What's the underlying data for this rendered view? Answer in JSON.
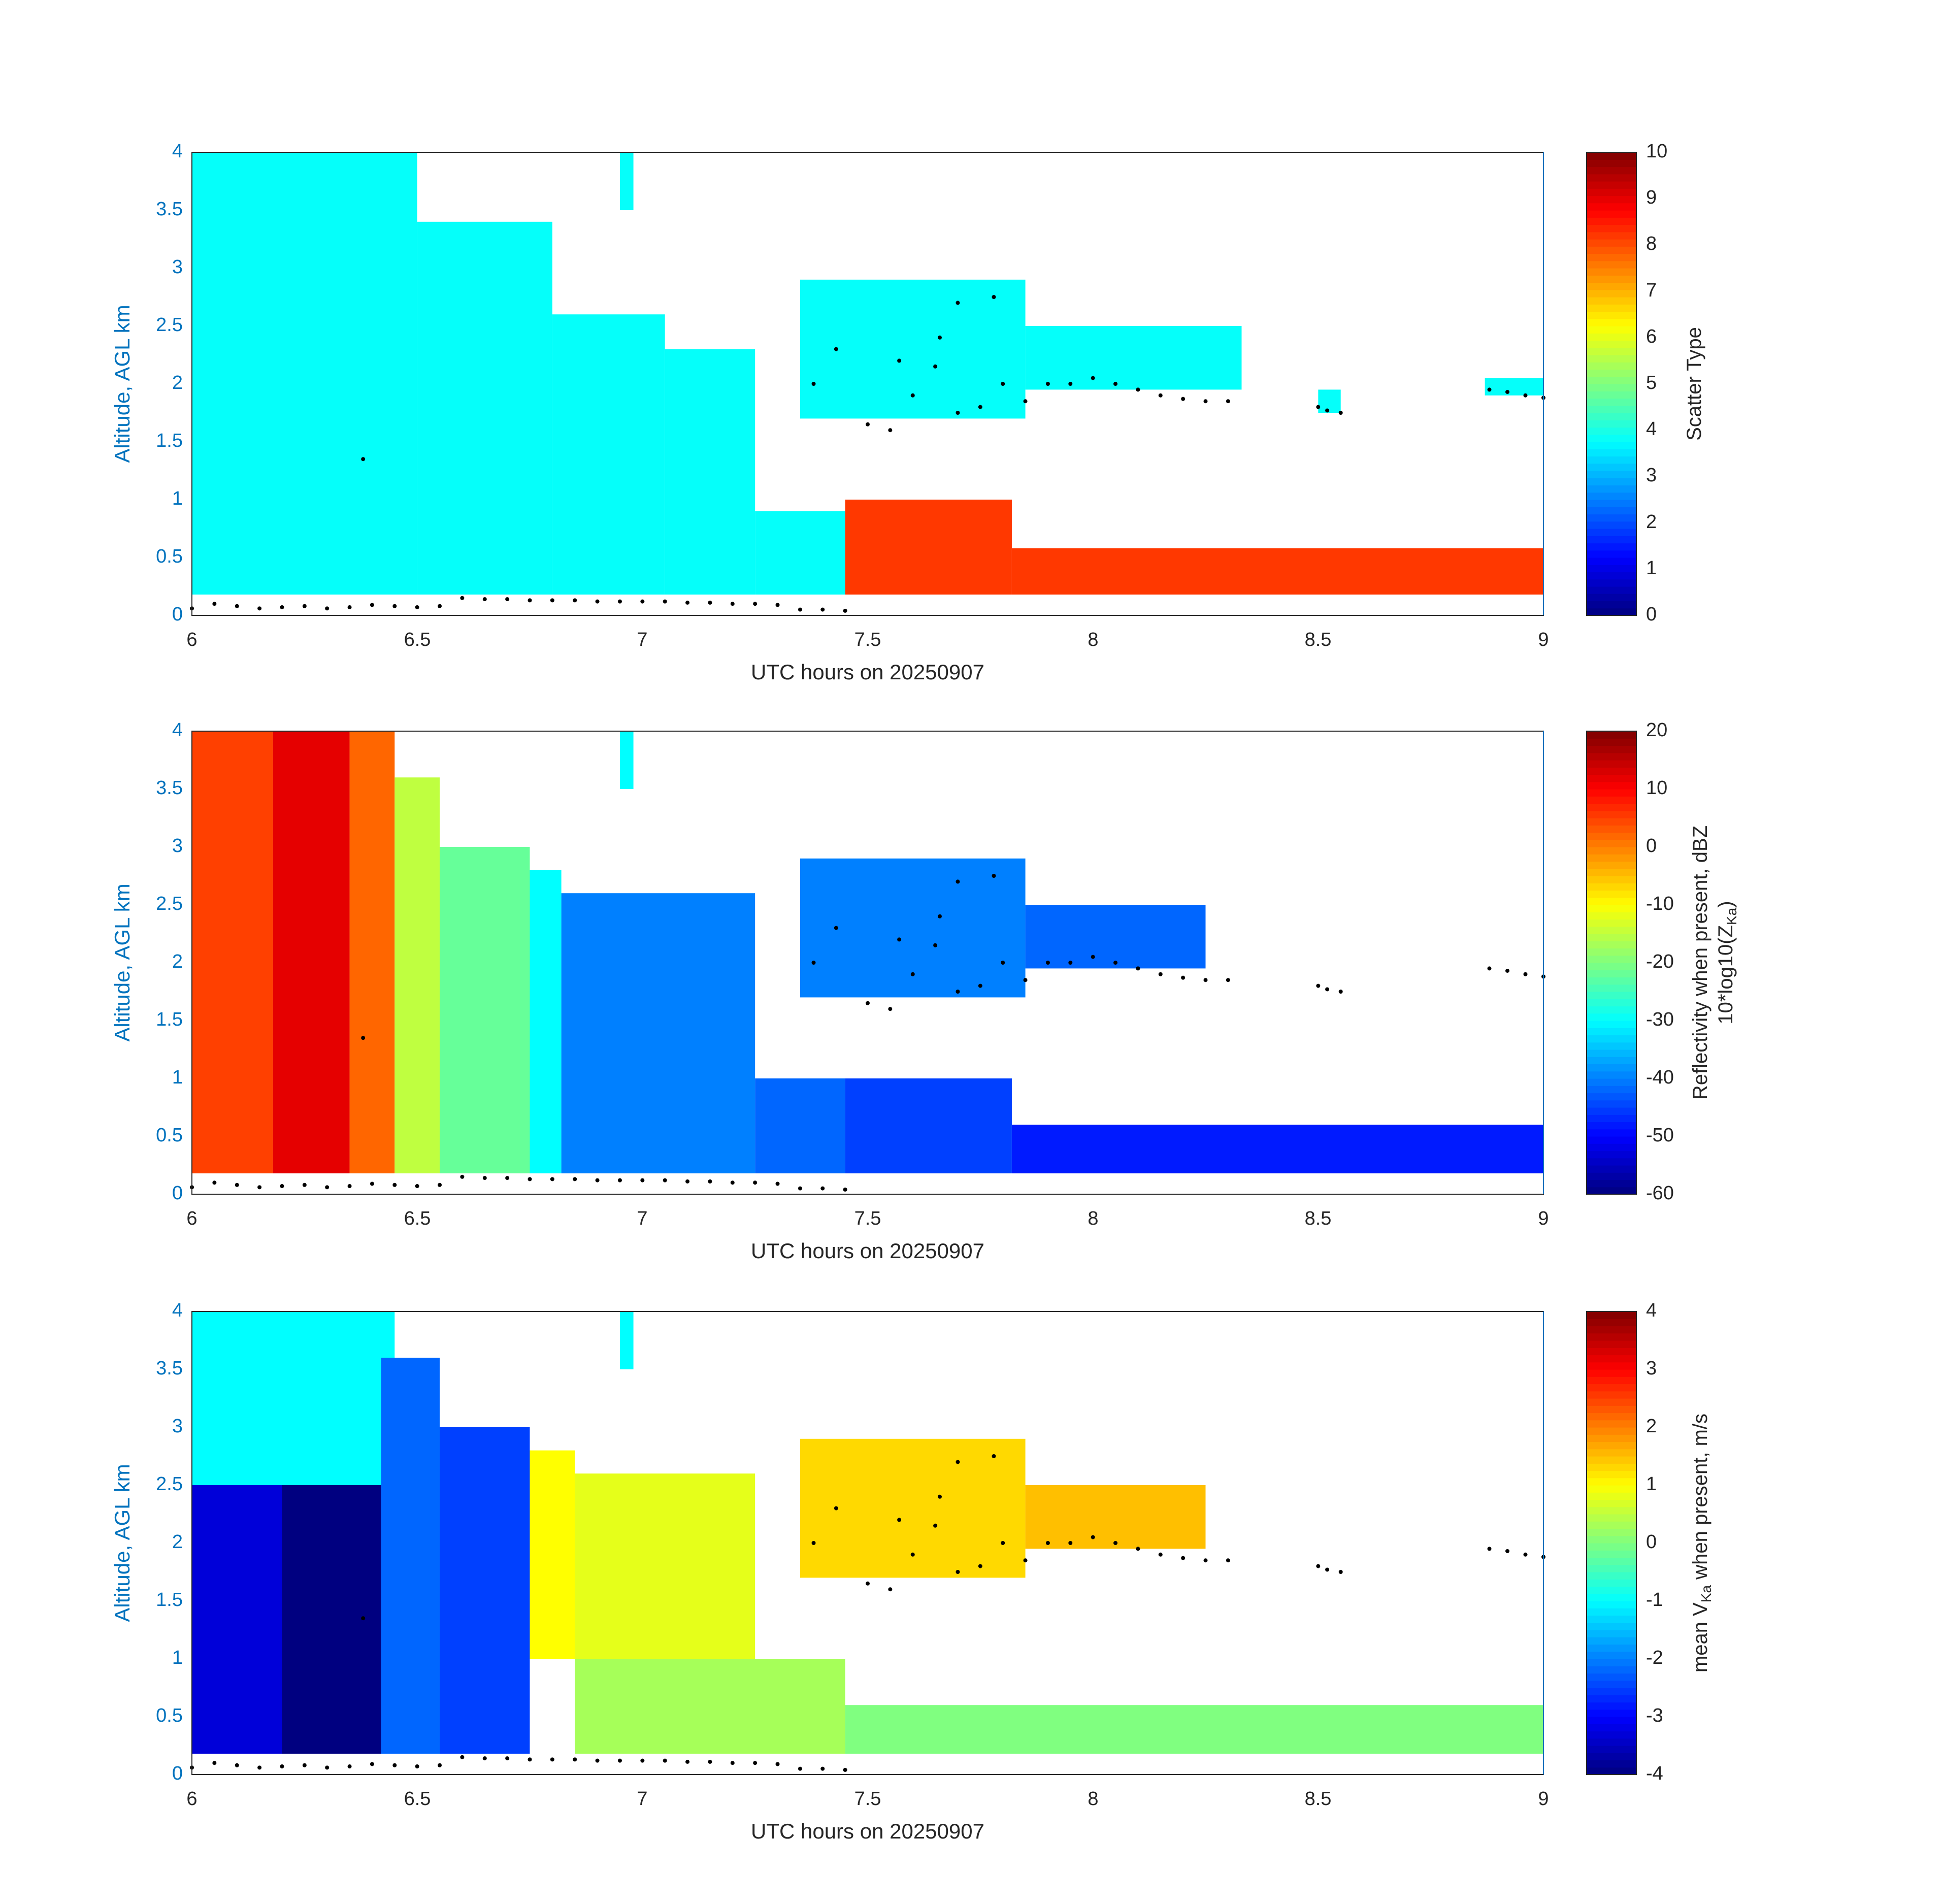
{
  "chart_data": [
    {
      "type": "heatmap",
      "name": "scatter-type",
      "xlabel": "UTC hours on 20250907",
      "ylabel": "Altitude, AGL km",
      "xlim": [
        6,
        9
      ],
      "ylim": [
        0,
        4
      ],
      "xticks": [
        "6",
        "6.5",
        "7",
        "7.5",
        "8",
        "8.5",
        "9"
      ],
      "yticks": [
        "0",
        "0.5",
        "1",
        "1.5",
        "2",
        "2.5",
        "3",
        "3.5",
        "4"
      ],
      "colorbar": {
        "label": "Scatter Type",
        "range": [
          0,
          10
        ],
        "ticks": [
          "0",
          "1",
          "2",
          "3",
          "4",
          "5",
          "6",
          "7",
          "8",
          "9",
          "10"
        ]
      },
      "regions": [
        {
          "x": [
            6.0,
            6.5
          ],
          "y": [
            0.18,
            4.0
          ],
          "value": 3.8
        },
        {
          "x": [
            6.5,
            6.8
          ],
          "y": [
            0.18,
            3.4
          ],
          "value": 3.8
        },
        {
          "x": [
            6.8,
            7.05
          ],
          "y": [
            0.18,
            2.6
          ],
          "value": 3.8
        },
        {
          "x": [
            7.05,
            7.25
          ],
          "y": [
            0.18,
            2.3
          ],
          "value": 3.8
        },
        {
          "x": [
            7.25,
            7.45
          ],
          "y": [
            0.18,
            0.9
          ],
          "value": 3.8
        },
        {
          "x": [
            7.35,
            7.85
          ],
          "y": [
            1.7,
            2.9
          ],
          "value": 3.8
        },
        {
          "x": [
            7.85,
            8.33
          ],
          "y": [
            1.95,
            2.5
          ],
          "value": 3.8
        },
        {
          "x": [
            7.45,
            7.82
          ],
          "y": [
            0.18,
            1.0
          ],
          "value": 8.2
        },
        {
          "x": [
            7.82,
            9.0
          ],
          "y": [
            0.18,
            0.58
          ],
          "value": 8.2
        },
        {
          "x": [
            6.95,
            6.98
          ],
          "y": [
            3.5,
            4.0
          ],
          "value": 3.8
        },
        {
          "x": [
            8.5,
            8.55
          ],
          "y": [
            1.75,
            1.95
          ],
          "value": 3.8
        },
        {
          "x": [
            8.87,
            9.0
          ],
          "y": [
            1.9,
            2.05
          ],
          "value": 3.8
        }
      ]
    },
    {
      "type": "heatmap",
      "name": "reflectivity",
      "xlabel": "UTC hours on 20250907",
      "ylabel": "Altitude, AGL km",
      "xlim": [
        6,
        9
      ],
      "ylim": [
        0,
        4
      ],
      "xticks": [
        "6",
        "6.5",
        "7",
        "7.5",
        "8",
        "8.5",
        "9"
      ],
      "yticks": [
        "0",
        "0.5",
        "1",
        "1.5",
        "2",
        "2.5",
        "3",
        "3.5",
        "4"
      ],
      "colorbar": {
        "label_line1": "Reflectivity when present, dBZ",
        "label_line2": "10*log10(Z",
        "label_sub": "Ka",
        "label_end": ")",
        "range": [
          -60,
          20
        ],
        "ticks": [
          "-60",
          "-50",
          "-40",
          "-30",
          "-20",
          "-10",
          "0",
          "10",
          "20"
        ]
      },
      "regions": [
        {
          "x": [
            6.0,
            6.18
          ],
          "y": [
            0.18,
            4.0
          ],
          "value": 5
        },
        {
          "x": [
            6.18,
            6.35
          ],
          "y": [
            0.18,
            4.0
          ],
          "value": 12
        },
        {
          "x": [
            6.35,
            6.45
          ],
          "y": [
            0.18,
            4.0
          ],
          "value": 2
        },
        {
          "x": [
            6.45,
            6.55
          ],
          "y": [
            0.18,
            3.6
          ],
          "value": -15
        },
        {
          "x": [
            6.55,
            6.75
          ],
          "y": [
            0.18,
            3.0
          ],
          "value": -22
        },
        {
          "x": [
            6.75,
            6.82
          ],
          "y": [
            0.18,
            2.8
          ],
          "value": -30
        },
        {
          "x": [
            6.82,
            7.25
          ],
          "y": [
            0.18,
            2.6
          ],
          "value": -40
        },
        {
          "x": [
            7.25,
            7.45
          ],
          "y": [
            0.18,
            1.0
          ],
          "value": -42
        },
        {
          "x": [
            7.45,
            7.82
          ],
          "y": [
            0.18,
            1.0
          ],
          "value": -45
        },
        {
          "x": [
            7.82,
            9.0
          ],
          "y": [
            0.18,
            0.6
          ],
          "value": -48
        },
        {
          "x": [
            7.35,
            7.85
          ],
          "y": [
            1.7,
            2.9
          ],
          "value": -40
        },
        {
          "x": [
            7.85,
            8.25
          ],
          "y": [
            1.95,
            2.5
          ],
          "value": -42
        },
        {
          "x": [
            6.95,
            6.98
          ],
          "y": [
            3.5,
            4.0
          ],
          "value": -30
        }
      ]
    },
    {
      "type": "heatmap",
      "name": "mean-velocity",
      "xlabel": "UTC hours on 20250907",
      "ylabel": "Altitude, AGL km",
      "xlim": [
        6,
        9
      ],
      "ylim": [
        0,
        4
      ],
      "xticks": [
        "6",
        "6.5",
        "7",
        "7.5",
        "8",
        "8.5",
        "9"
      ],
      "yticks": [
        "0",
        "0.5",
        "1",
        "1.5",
        "2",
        "2.5",
        "3",
        "3.5",
        "4"
      ],
      "colorbar": {
        "label_pre": "mean V",
        "label_sub": "Ka",
        "label_post": " when present, m/s",
        "range": [
          -4,
          4
        ],
        "ticks": [
          "-4",
          "-3",
          "-2",
          "-1",
          "0",
          "1",
          "2",
          "3",
          "4"
        ]
      },
      "regions": [
        {
          "x": [
            6.0,
            6.45
          ],
          "y": [
            2.5,
            4.0
          ],
          "value": -1
        },
        {
          "x": [
            6.0,
            6.2
          ],
          "y": [
            0.18,
            2.5
          ],
          "value": -3.3
        },
        {
          "x": [
            6.2,
            6.42
          ],
          "y": [
            0.18,
            2.5
          ],
          "value": -4
        },
        {
          "x": [
            6.42,
            6.55
          ],
          "y": [
            0.18,
            3.6
          ],
          "value": -2.2
        },
        {
          "x": [
            6.55,
            6.75
          ],
          "y": [
            0.18,
            3.0
          ],
          "value": -2.5
        },
        {
          "x": [
            6.75,
            6.85
          ],
          "y": [
            1.0,
            2.8
          ],
          "value": 1.0
        },
        {
          "x": [
            6.85,
            7.25
          ],
          "y": [
            1.0,
            2.6
          ],
          "value": 0.8
        },
        {
          "x": [
            6.85,
            7.45
          ],
          "y": [
            0.18,
            1.0
          ],
          "value": 0.3
        },
        {
          "x": [
            7.45,
            9.0
          ],
          "y": [
            0.18,
            0.6
          ],
          "value": 0.0
        },
        {
          "x": [
            7.35,
            7.85
          ],
          "y": [
            1.7,
            2.9
          ],
          "value": 1.3
        },
        {
          "x": [
            7.85,
            8.25
          ],
          "y": [
            1.95,
            2.5
          ],
          "value": 1.5
        },
        {
          "x": [
            6.95,
            6.98
          ],
          "y": [
            3.5,
            4.0
          ],
          "value": -1
        }
      ]
    }
  ],
  "dots": {
    "x": [
      6.0,
      6.05,
      6.1,
      6.15,
      6.2,
      6.25,
      6.3,
      6.35,
      6.4,
      6.45,
      6.5,
      6.55,
      6.6,
      6.65,
      6.7,
      6.75,
      6.8,
      6.85,
      6.9,
      6.95,
      7.0,
      7.05,
      7.1,
      7.15,
      7.2,
      7.25,
      7.3,
      7.35,
      7.4,
      7.45,
      7.5,
      7.55,
      7.6,
      7.65,
      7.7,
      7.75,
      7.8,
      7.85,
      7.9,
      7.95,
      8.0,
      8.05,
      8.1,
      8.15,
      8.2,
      8.25,
      8.3,
      8.5,
      8.52,
      8.55,
      8.88,
      8.92,
      8.96,
      9.0,
      6.38,
      7.38,
      7.43,
      7.57,
      7.66,
      7.7,
      7.78
    ],
    "y": [
      0.06,
      0.1,
      0.08,
      0.06,
      0.07,
      0.08,
      0.06,
      0.07,
      0.09,
      0.08,
      0.07,
      0.08,
      0.15,
      0.14,
      0.14,
      0.13,
      0.13,
      0.13,
      0.12,
      0.12,
      0.12,
      0.12,
      0.11,
      0.11,
      0.1,
      0.1,
      0.09,
      0.05,
      0.05,
      0.04,
      1.65,
      1.6,
      1.9,
      2.15,
      1.75,
      1.8,
      2.0,
      1.85,
      2.0,
      2.0,
      2.05,
      2.0,
      1.95,
      1.9,
      1.87,
      1.85,
      1.85,
      1.8,
      1.77,
      1.75,
      1.95,
      1.93,
      1.9,
      1.88,
      1.35,
      2.0,
      2.3,
      2.2,
      2.4,
      2.7,
      2.75
    ]
  }
}
